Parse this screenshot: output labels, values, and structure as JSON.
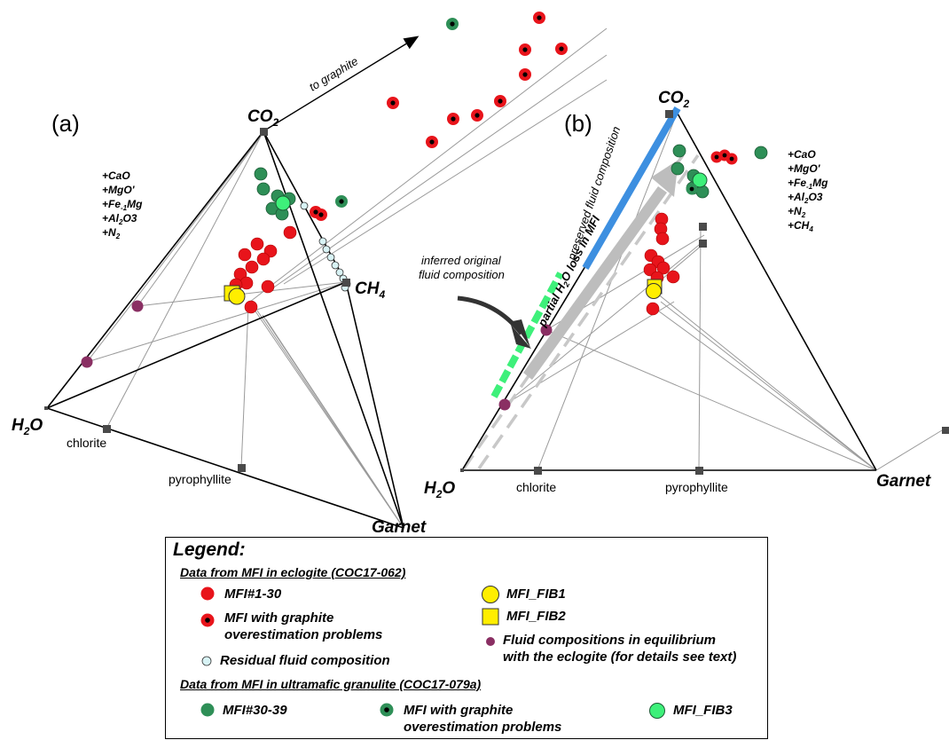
{
  "panel_a": {
    "label": "(a)",
    "vertices": {
      "co2": "CO",
      "co2_sub": "2",
      "ch4": "CH",
      "ch4_sub": "4",
      "h2o": "H",
      "h2o_sub": "2",
      "h2o_tail": "O",
      "garnet": "Garnet"
    },
    "phases": {
      "chlorite": "chlorite",
      "pyrophyllite": "pyrophyllite"
    },
    "additions": [
      "+CaO",
      "+MgO'",
      "+Fe",
      "+Al",
      "+N"
    ],
    "graphite_note": "to graphite"
  },
  "panel_b": {
    "label": "(b)",
    "vertices": {
      "co2": "CO",
      "co2_sub": "2",
      "h2o": "H",
      "h2o_sub": "2",
      "h2o_tail": "O",
      "garnet": "Garnet"
    },
    "phases": {
      "chlorite": "chlorite",
      "pyrophyllite": "pyrophyllite"
    },
    "additions": [
      "+CaO",
      "+MgO'",
      "+Fe",
      "+Al",
      "+N",
      "+CH"
    ],
    "preserved_note": "preserved fluid composition",
    "loss_note": "partial H O loss in MFI",
    "inferred_note_1": "inferred original",
    "inferred_note_2": "fluid composition"
  },
  "legend": {
    "title": "Legend:",
    "section_eclogite": "Data from MFI in eclogite (COC17-062)",
    "mfi_1_30": "MFI#1-30",
    "graphite_problem_1": "MFI with graphite",
    "graphite_problem_2": "overestimation problems",
    "residual": "Residual fluid composition",
    "fib1": "MFI_FIB1",
    "fib2": "MFI_FIB2",
    "equilibrium_1": "Fluid compositions in equilibrium",
    "equilibrium_2": "with the eclogite (for details see text)",
    "section_granulite": "Data from MFI in ultramafic granulite (COC17-079a)",
    "mfi_30_39": "MFI#30-39",
    "graphite_problem_g1": "MFI with graphite",
    "graphite_problem_g2": "overestimation problems",
    "fib3": "MFI_FIB3"
  },
  "colors": {
    "red": "#e8141b",
    "green": "#2e8f57",
    "light_green": "#3ef07a",
    "yellow": "#ffee00",
    "purple": "#8a2f63",
    "light_blue": "#d8f3f5",
    "blue": "#3d8fe0",
    "gray_square": "#4a4a4a"
  }
}
